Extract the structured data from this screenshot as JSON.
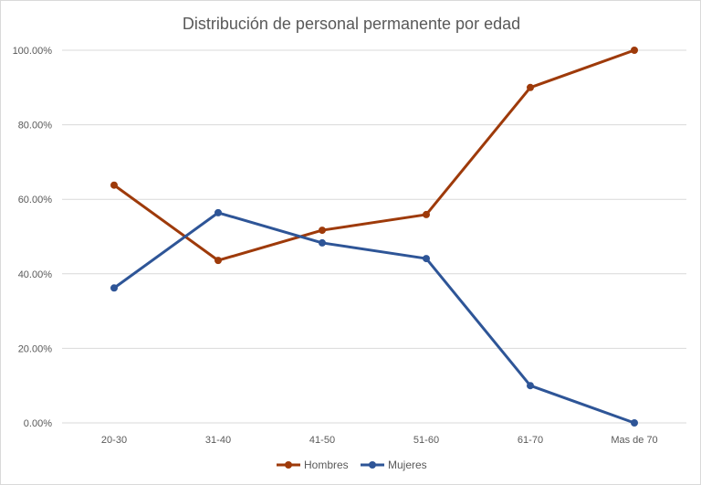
{
  "chart_data": {
    "type": "line",
    "title": "Distribución de personal permanente por edad",
    "xlabel": "",
    "ylabel": "",
    "categories": [
      "20-30",
      "31-40",
      "41-50",
      "51-60",
      "61-70",
      "Mas de 70"
    ],
    "ylim": [
      0,
      100
    ],
    "y_ticks": [
      "0.00%",
      "20.00%",
      "40.00%",
      "60.00%",
      "80.00%",
      "100.00%"
    ],
    "grid": true,
    "legend_position": "bottom",
    "series": [
      {
        "name": "Hombres",
        "color": "#9e3a0a",
        "values": [
          63.8,
          43.6,
          51.7,
          55.9,
          90.0,
          100.0
        ]
      },
      {
        "name": "Mujeres",
        "color": "#2e5597",
        "values": [
          36.2,
          56.4,
          48.3,
          44.1,
          10.0,
          0.0
        ]
      }
    ]
  }
}
